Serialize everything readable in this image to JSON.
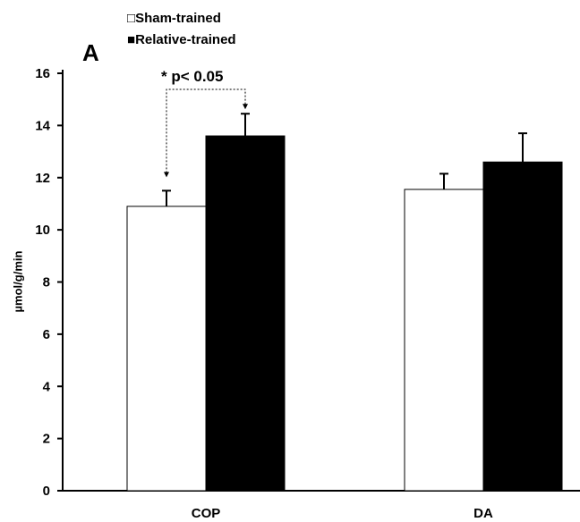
{
  "chart_data": {
    "type": "bar",
    "panel_label": "A",
    "categories": [
      "COP",
      "DA"
    ],
    "series": [
      {
        "name": "Sham-trained",
        "values": [
          10.9,
          11.55
        ],
        "errors": [
          0.6,
          0.6
        ],
        "fill": "#ffffff",
        "symbol": "□"
      },
      {
        "name": "Relative-trained",
        "values": [
          13.6,
          12.6
        ],
        "errors": [
          0.85,
          1.1
        ],
        "fill": "#000000",
        "symbol": "■"
      }
    ],
    "ylabel": "µmol/g/min",
    "ylim": [
      0,
      16
    ],
    "yticks": [
      0,
      2,
      4,
      6,
      8,
      10,
      12,
      14,
      16
    ],
    "annotation": "* p< 0.05",
    "grid": false,
    "legend_position": "top-left"
  }
}
